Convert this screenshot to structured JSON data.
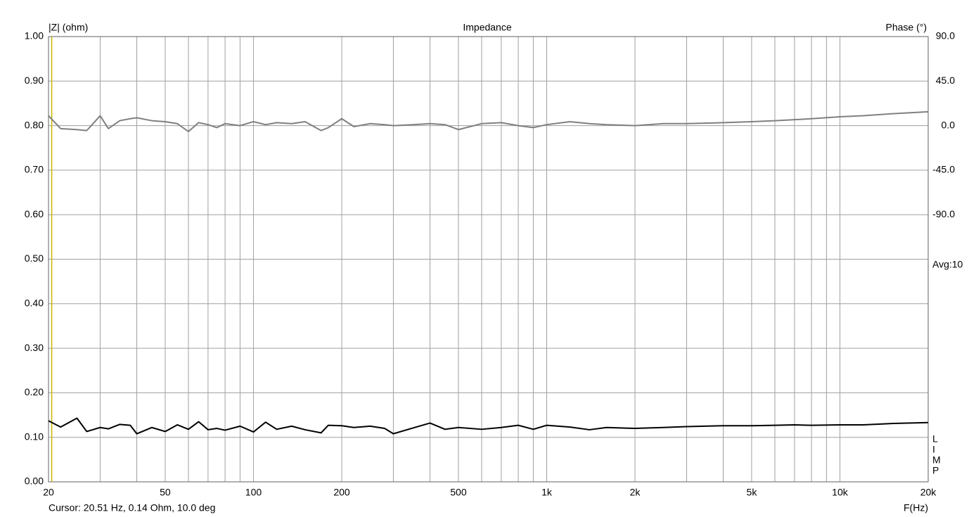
{
  "chart_data": {
    "type": "line",
    "title": "Impedance",
    "y_label": "|Z| (ohm)",
    "y2_label": "Phase (°)",
    "x_label": "F(Hz)",
    "annotation": "Avg:10",
    "side_label": [
      "L",
      "I",
      "M",
      "P"
    ],
    "cursor_text": "Cursor: 20.51 Hz, 0.14 Ohm, 10.0 deg",
    "cursor_x": 20.51,
    "cursor_color": "#c8b400",
    "log_x": true,
    "grid": true,
    "xlim": [
      20,
      20000
    ],
    "xticks": [
      20,
      50,
      100,
      200,
      500,
      {
        "value": 1000,
        "label": "1k"
      },
      {
        "value": 2000,
        "label": "2k"
      },
      {
        "value": 5000,
        "label": "5k"
      },
      {
        "value": 10000,
        "label": "10k"
      },
      {
        "value": 20000,
        "label": "20k"
      }
    ],
    "xminor": [
      30,
      40,
      60,
      70,
      80,
      90,
      300,
      400,
      600,
      700,
      800,
      900,
      3000,
      4000,
      6000,
      7000,
      8000,
      9000
    ],
    "ylim": [
      0,
      1
    ],
    "yticks": [
      {
        "value": 0,
        "label": "0.00"
      },
      {
        "value": 0.1,
        "label": "0.10"
      },
      {
        "value": 0.2,
        "label": "0.20"
      },
      {
        "value": 0.3,
        "label": "0.30"
      },
      {
        "value": 0.4,
        "label": "0.40"
      },
      {
        "value": 0.5,
        "label": "0.50"
      },
      {
        "value": 0.6,
        "label": "0.60"
      },
      {
        "value": 0.7,
        "label": "0.70"
      },
      {
        "value": 0.8,
        "label": "0.80"
      },
      {
        "value": 0.9,
        "label": "0.90"
      },
      {
        "value": 1,
        "label": "1.00"
      }
    ],
    "y2lim": [
      -360,
      90
    ],
    "y2ticks": [
      {
        "value": 90,
        "label": "90.0"
      },
      {
        "value": 45,
        "label": "45.0"
      },
      {
        "value": 0,
        "label": "0.0"
      },
      {
        "value": -45,
        "label": "-45.0"
      },
      {
        "value": -90,
        "label": "-90.0"
      }
    ],
    "x": [
      20,
      22,
      25,
      27,
      30,
      32,
      35,
      38,
      40,
      45,
      50,
      55,
      60,
      65,
      70,
      75,
      80,
      90,
      100,
      110,
      120,
      135,
      150,
      170,
      180,
      200,
      220,
      250,
      280,
      300,
      350,
      400,
      450,
      500,
      600,
      700,
      800,
      900,
      1000,
      1200,
      1400,
      1600,
      2000,
      2500,
      3000,
      4000,
      5000,
      6000,
      7000,
      8000,
      10000,
      12000,
      15000,
      20000
    ],
    "series": [
      {
        "color": "#000000",
        "values": [
          0.137,
          0.123,
          0.143,
          0.113,
          0.122,
          0.119,
          0.129,
          0.127,
          0.108,
          0.122,
          0.113,
          0.128,
          0.118,
          0.135,
          0.117,
          0.12,
          0.116,
          0.125,
          0.112,
          0.134,
          0.118,
          0.125,
          0.117,
          0.11,
          0.127,
          0.126,
          0.122,
          0.125,
          0.12,
          0.108,
          0.121,
          0.132,
          0.118,
          0.122,
          0.118,
          0.122,
          0.127,
          0.118,
          0.127,
          0.123,
          0.117,
          0.122,
          0.12,
          0.122,
          0.124,
          0.126,
          0.126,
          0.127,
          0.128,
          0.127,
          0.128,
          0.128,
          0.131,
          0.133
        ]
      },
      {
        "color": "#808080",
        "axis": "y2",
        "values": [
          10,
          -3,
          -4,
          -5,
          10,
          -3,
          5,
          7,
          8,
          5,
          4,
          2,
          -6,
          3,
          1,
          -2,
          2,
          0,
          4,
          1,
          3,
          2,
          4,
          -5,
          -2,
          7,
          -1,
          2,
          1,
          0,
          1,
          2,
          1,
          -4,
          2,
          3,
          0,
          -2,
          1,
          4,
          2,
          1,
          0,
          2,
          2,
          3,
          4,
          5,
          6,
          7,
          9,
          10,
          12,
          14
        ]
      }
    ]
  }
}
